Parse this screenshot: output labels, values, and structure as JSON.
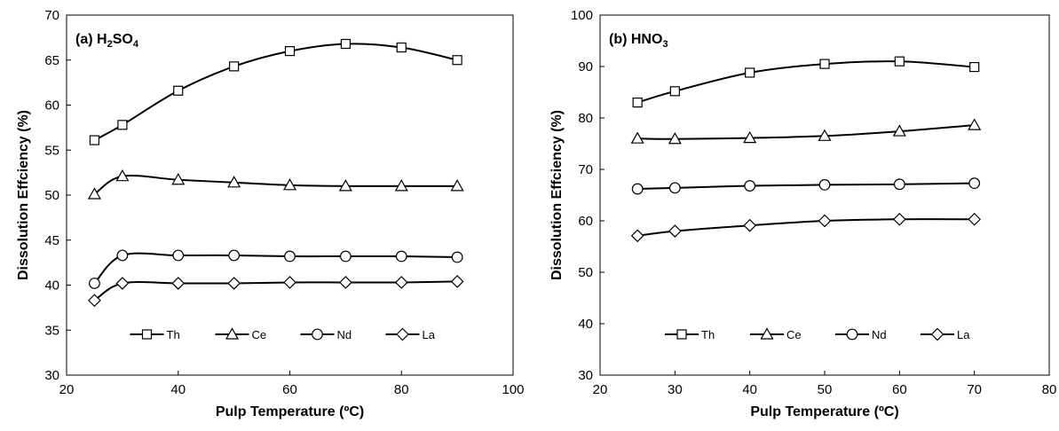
{
  "chart_data": [
    {
      "type": "line",
      "title": "(a) H2SO4",
      "title_parts": {
        "prefix": "(a) H",
        "sub1": "2",
        "mid": "SO",
        "sub2": "4"
      },
      "xlabel": "Pulp Temperature (ºC)",
      "ylabel": "Dissolution Effciency (%)",
      "xlim": [
        20,
        100
      ],
      "ylim": [
        30,
        70
      ],
      "xticks": [
        20,
        40,
        60,
        80,
        100
      ],
      "yticks": [
        30,
        35,
        40,
        45,
        50,
        55,
        60,
        65,
        70
      ],
      "grid": false,
      "legend_placement": "bottom-center",
      "x": [
        25,
        30,
        40,
        50,
        60,
        70,
        80,
        90
      ],
      "series": [
        {
          "name": "Th",
          "marker": "square",
          "values": [
            56.1,
            57.8,
            61.6,
            64.3,
            66.0,
            66.8,
            66.4,
            65.0
          ]
        },
        {
          "name": "Ce",
          "marker": "triangle",
          "values": [
            50.1,
            52.1,
            51.7,
            51.4,
            51.1,
            51.0,
            51.0,
            51.0
          ]
        },
        {
          "name": "Nd",
          "marker": "circle",
          "values": [
            40.2,
            43.3,
            43.3,
            43.3,
            43.2,
            43.2,
            43.2,
            43.1
          ]
        },
        {
          "name": "La",
          "marker": "diamond",
          "values": [
            38.3,
            40.2,
            40.2,
            40.2,
            40.3,
            40.3,
            40.3,
            40.4
          ]
        }
      ]
    },
    {
      "type": "line",
      "title": "(b) HNO3",
      "title_parts": {
        "prefix": "(b) HNO",
        "sub1": "3",
        "mid": "",
        "sub2": ""
      },
      "xlabel": "Pulp Temperature (ºC)",
      "ylabel": "Dissolution Effciency (%)",
      "xlim": [
        20,
        80
      ],
      "ylim": [
        30,
        100
      ],
      "xticks": [
        20,
        30,
        40,
        50,
        60,
        70,
        80
      ],
      "yticks": [
        30,
        40,
        50,
        60,
        70,
        80,
        90,
        100
      ],
      "grid": false,
      "legend_placement": "bottom-center",
      "x": [
        25,
        30,
        40,
        50,
        60,
        70
      ],
      "series": [
        {
          "name": "Th",
          "marker": "square",
          "values": [
            83.0,
            85.2,
            88.8,
            90.5,
            91.0,
            89.9
          ]
        },
        {
          "name": "Ce",
          "marker": "triangle",
          "values": [
            76.0,
            75.9,
            76.1,
            76.5,
            77.4,
            78.6
          ]
        },
        {
          "name": "Nd",
          "marker": "circle",
          "values": [
            66.2,
            66.4,
            66.8,
            67.0,
            67.1,
            67.3
          ]
        },
        {
          "name": "La",
          "marker": "diamond",
          "values": [
            57.1,
            58.0,
            59.1,
            60.0,
            60.3,
            60.3
          ]
        }
      ]
    }
  ]
}
